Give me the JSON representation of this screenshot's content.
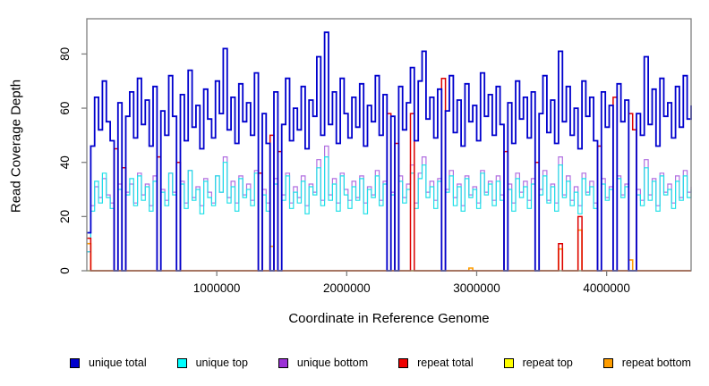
{
  "figure_title": "",
  "xlabel": "Coordinate in Reference Genome",
  "ylabel": "Read Coverage Depth",
  "axis_color": "#7f7f7f",
  "text_color": "#000000",
  "background_color": "#ffffff",
  "chart_data": {
    "type": "line",
    "step_interpolation": true,
    "title": "",
    "xlabel": "Coordinate in Reference Genome",
    "ylabel": "Read Coverage Depth",
    "xlim": [
      0,
      4650000
    ],
    "ylim": [
      0,
      93
    ],
    "x_start": 0,
    "x_step": 30000,
    "x_tick_values": [
      1000000,
      2000000,
      3000000,
      4000000
    ],
    "x_tick_labels": [
      "1000000",
      "2000000",
      "3000000",
      "4000000"
    ],
    "y_tick_values": [
      0,
      20,
      40,
      60,
      80
    ],
    "y_tick_labels": [
      "0",
      "20",
      "40",
      "60",
      "80"
    ],
    "grid": false,
    "legend_position": "bottom",
    "series": [
      {
        "name": "unique total",
        "color": "#0000cd",
        "swatch": "#0000cd",
        "lw": 1.8,
        "z": 6,
        "values": [
          14,
          46,
          64,
          52,
          70,
          55,
          48,
          0,
          62,
          0,
          57,
          66,
          49,
          71,
          54,
          63,
          46,
          68,
          0,
          59,
          50,
          72,
          57,
          0,
          65,
          48,
          74,
          53,
          61,
          45,
          67,
          56,
          49,
          70,
          58,
          82,
          52,
          64,
          47,
          69,
          55,
          62,
          50,
          73,
          0,
          58,
          47,
          0,
          66,
          0,
          54,
          71,
          48,
          60,
          52,
          68,
          45,
          63,
          57,
          79,
          50,
          88,
          54,
          66,
          47,
          71,
          58,
          49,
          64,
          53,
          69,
          46,
          61,
          55,
          72,
          50,
          65,
          0,
          57,
          0,
          68,
          52,
          62,
          75,
          48,
          70,
          81,
          56,
          64,
          49,
          67,
          0,
          59,
          72,
          51,
          63,
          46,
          69,
          55,
          61,
          48,
          73,
          57,
          65,
          50,
          68,
          54,
          0,
          62,
          47,
          70,
          56,
          64,
          49,
          66,
          0,
          58,
          72,
          51,
          63,
          47,
          81,
          55,
          68,
          50,
          60,
          45,
          70,
          57,
          64,
          48,
          0,
          66,
          53,
          61,
          0,
          69,
          55,
          63,
          0,
          0,
          58,
          50,
          79,
          54,
          67,
          46,
          71,
          57,
          62,
          49,
          68,
          53,
          72,
          56,
          61
        ]
      },
      {
        "name": "unique top",
        "color": "#20dfe8",
        "swatch": "#00ffff",
        "lw": 1.2,
        "z": 4,
        "values": [
          7,
          22,
          33,
          25,
          36,
          27,
          23,
          0,
          30,
          0,
          28,
          34,
          24,
          35,
          26,
          31,
          22,
          33,
          0,
          29,
          24,
          36,
          28,
          0,
          32,
          23,
          37,
          26,
          30,
          21,
          33,
          27,
          24,
          35,
          29,
          40,
          25,
          31,
          22,
          34,
          27,
          30,
          24,
          36,
          0,
          28,
          22,
          0,
          32,
          0,
          26,
          35,
          23,
          29,
          25,
          33,
          21,
          31,
          28,
          38,
          24,
          42,
          26,
          32,
          22,
          35,
          28,
          23,
          31,
          26,
          34,
          21,
          30,
          27,
          35,
          24,
          32,
          0,
          28,
          0,
          33,
          25,
          30,
          36,
          23,
          34,
          39,
          27,
          31,
          23,
          33,
          0,
          29,
          35,
          24,
          31,
          22,
          34,
          27,
          30,
          23,
          36,
          28,
          32,
          24,
          33,
          26,
          0,
          30,
          22,
          34,
          27,
          31,
          23,
          32,
          0,
          28,
          35,
          25,
          31,
          22,
          39,
          27,
          33,
          24,
          29,
          21,
          34,
          28,
          31,
          23,
          0,
          32,
          26,
          30,
          0,
          34,
          27,
          31,
          0,
          0,
          28,
          24,
          38,
          26,
          33,
          22,
          35,
          28,
          30,
          23,
          33,
          26,
          35,
          27,
          30
        ]
      },
      {
        "name": "unique bottom",
        "color": "#b06fe0",
        "swatch": "#9b30d6",
        "lw": 1.2,
        "z": 3,
        "values": [
          7,
          24,
          31,
          27,
          34,
          28,
          25,
          0,
          32,
          0,
          29,
          32,
          25,
          36,
          28,
          32,
          24,
          35,
          0,
          30,
          26,
          36,
          29,
          0,
          33,
          25,
          37,
          27,
          31,
          24,
          34,
          29,
          25,
          35,
          29,
          42,
          27,
          33,
          25,
          35,
          28,
          32,
          26,
          37,
          0,
          30,
          25,
          0,
          34,
          0,
          28,
          36,
          25,
          31,
          27,
          35,
          24,
          32,
          29,
          41,
          26,
          46,
          28,
          34,
          25,
          36,
          30,
          26,
          33,
          27,
          35,
          25,
          31,
          28,
          37,
          26,
          33,
          0,
          29,
          0,
          35,
          27,
          32,
          39,
          25,
          36,
          42,
          29,
          33,
          26,
          34,
          0,
          30,
          37,
          27,
          32,
          24,
          35,
          28,
          31,
          25,
          37,
          29,
          33,
          26,
          35,
          28,
          0,
          32,
          25,
          36,
          29,
          33,
          26,
          34,
          0,
          30,
          37,
          26,
          32,
          25,
          42,
          28,
          35,
          26,
          31,
          24,
          36,
          29,
          33,
          25,
          0,
          34,
          27,
          31,
          0,
          35,
          28,
          32,
          0,
          0,
          30,
          26,
          41,
          28,
          34,
          24,
          36,
          29,
          32,
          25,
          35,
          27,
          37,
          29,
          31
        ]
      },
      {
        "name": "repeat total",
        "color": "#dd0000",
        "swatch": "#ee0000",
        "lw": 1.5,
        "z": 5,
        "values": [
          12,
          0,
          0,
          0,
          0,
          0,
          0,
          45,
          0,
          38,
          0,
          0,
          0,
          0,
          0,
          0,
          0,
          0,
          42,
          0,
          0,
          0,
          0,
          40,
          0,
          0,
          0,
          0,
          0,
          0,
          0,
          0,
          0,
          0,
          0,
          0,
          0,
          0,
          0,
          0,
          0,
          0,
          0,
          0,
          36,
          0,
          0,
          50,
          0,
          44,
          0,
          0,
          0,
          0,
          0,
          0,
          0,
          0,
          0,
          0,
          0,
          0,
          0,
          0,
          0,
          0,
          0,
          0,
          0,
          0,
          0,
          0,
          0,
          0,
          0,
          0,
          0,
          58,
          0,
          47,
          0,
          0,
          0,
          58,
          0,
          0,
          0,
          0,
          0,
          0,
          0,
          71,
          0,
          0,
          0,
          0,
          0,
          0,
          0,
          0,
          0,
          0,
          0,
          0,
          0,
          0,
          0,
          44,
          0,
          0,
          0,
          0,
          0,
          0,
          0,
          40,
          0,
          0,
          0,
          0,
          0,
          10,
          0,
          0,
          0,
          0,
          20,
          0,
          0,
          0,
          0,
          46,
          0,
          0,
          0,
          64,
          0,
          0,
          0,
          58,
          52,
          0,
          0,
          0,
          0,
          0,
          0,
          0,
          0,
          0,
          0,
          0,
          0,
          0,
          0,
          0
        ]
      },
      {
        "name": "repeat top",
        "color": "#ffff00",
        "swatch": "#ffff00",
        "lw": 1.2,
        "z": 1,
        "values": [
          0,
          0,
          0,
          0,
          0,
          0,
          0,
          0,
          0,
          0,
          0,
          0,
          0,
          0,
          0,
          0,
          0,
          0,
          0,
          0,
          0,
          0,
          0,
          0,
          0,
          0,
          0,
          0,
          0,
          0,
          0,
          0,
          0,
          0,
          0,
          0,
          0,
          0,
          0,
          0,
          0,
          0,
          0,
          0,
          0,
          0,
          0,
          0,
          0,
          0,
          0,
          0,
          0,
          0,
          0,
          0,
          0,
          0,
          0,
          0,
          0,
          0,
          0,
          0,
          0,
          0,
          0,
          0,
          0,
          0,
          0,
          0,
          0,
          0,
          0,
          0,
          0,
          0,
          0,
          0,
          0,
          0,
          0,
          0,
          0,
          0,
          0,
          0,
          0,
          0,
          0,
          0,
          0,
          0,
          0,
          0,
          0,
          0,
          0,
          0,
          0,
          0,
          0,
          0,
          0,
          0,
          0,
          0,
          0,
          0,
          0,
          0,
          0,
          0,
          0,
          0,
          0,
          0,
          0,
          0,
          0,
          0,
          0,
          0,
          0,
          0,
          0,
          0,
          0,
          0,
          0,
          0,
          0,
          0,
          0,
          0,
          0,
          0,
          0,
          0,
          0,
          0,
          0,
          0,
          0,
          0,
          0,
          0,
          0,
          0,
          0,
          0,
          0,
          0,
          0,
          0
        ]
      },
      {
        "name": "repeat bottom",
        "color": "#ff9d00",
        "swatch": "#ff9d00",
        "lw": 1.6,
        "z": 2,
        "values": [
          10,
          0,
          0,
          0,
          0,
          0,
          0,
          0,
          0,
          0,
          0,
          0,
          0,
          0,
          0,
          0,
          0,
          0,
          0,
          0,
          0,
          0,
          0,
          0,
          0,
          0,
          0,
          0,
          0,
          0,
          0,
          0,
          0,
          0,
          0,
          0,
          0,
          0,
          0,
          0,
          0,
          0,
          0,
          0,
          0,
          0,
          0,
          9,
          0,
          0,
          0,
          0,
          0,
          0,
          0,
          0,
          0,
          0,
          0,
          0,
          0,
          0,
          0,
          0,
          0,
          0,
          0,
          0,
          0,
          0,
          0,
          0,
          0,
          0,
          0,
          0,
          0,
          0,
          0,
          0,
          0,
          0,
          0,
          0,
          0,
          0,
          0,
          0,
          0,
          0,
          0,
          0,
          0,
          0,
          0,
          0,
          0,
          0,
          1,
          0,
          0,
          0,
          0,
          0,
          0,
          0,
          0,
          0,
          0,
          0,
          0,
          0,
          0,
          0,
          0,
          0,
          0,
          0,
          0,
          0,
          0,
          8,
          0,
          0,
          0,
          0,
          15,
          0,
          0,
          0,
          0,
          0,
          0,
          0,
          0,
          0,
          0,
          0,
          0,
          4,
          0,
          0,
          0,
          0,
          0,
          0,
          0,
          0,
          0,
          0,
          0,
          0,
          0,
          0,
          0,
          0
        ]
      }
    ]
  }
}
